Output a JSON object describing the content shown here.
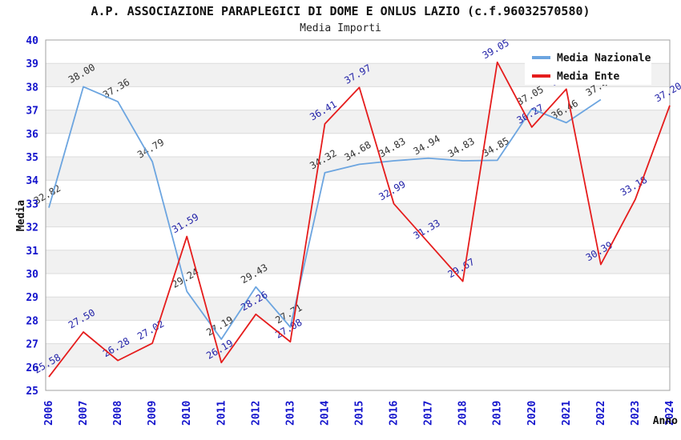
{
  "page": {
    "background": "#FFFFFF"
  },
  "chart_data": {
    "type": "line",
    "title": "A.P. ASSOCIAZIONE PARAPLEGICI DI DOME E ONLUS LAZIO (c.f.96032570580)",
    "subtitle": "Media Importi",
    "xlabel": "Anno",
    "ylabel": "Media",
    "x": [
      2006,
      2007,
      2008,
      2009,
      2010,
      2011,
      2012,
      2013,
      2014,
      2015,
      2016,
      2017,
      2018,
      2019,
      2020,
      2021,
      2022,
      2023,
      2024
    ],
    "ylim": [
      25,
      40
    ],
    "yticks": [
      25,
      26,
      27,
      28,
      29,
      30,
      31,
      32,
      33,
      34,
      35,
      36,
      37,
      38,
      39,
      40
    ],
    "grid": "horizontal-gridlines-with-alternating-bands",
    "legend_position": "top-right",
    "axis_tick_color": "#1414CC",
    "text_color": "#1A1A1A",
    "band_color": "#F1F1F1",
    "gridline_color": "#DCDCDC",
    "border_color": "#A0A0A0",
    "legend_bg": "#FFFFFF",
    "series": [
      {
        "name": "Media Nazionale",
        "color": "#6CA5E0",
        "label_color": "#333333",
        "values": [
          32.82,
          38.0,
          37.36,
          34.79,
          29.24,
          27.19,
          29.43,
          27.71,
          34.32,
          34.68,
          34.83,
          34.94,
          34.83,
          34.85,
          37.05,
          36.46,
          37.45,
          null,
          null
        ]
      },
      {
        "name": "Media Ente",
        "color": "#E51C1C",
        "label_color": "#2323A8",
        "values": [
          25.58,
          27.5,
          26.28,
          27.02,
          31.59,
          26.19,
          28.26,
          27.08,
          36.41,
          37.97,
          32.99,
          31.33,
          29.67,
          39.05,
          36.27,
          37.9,
          30.39,
          33.18,
          37.2
        ]
      }
    ]
  }
}
